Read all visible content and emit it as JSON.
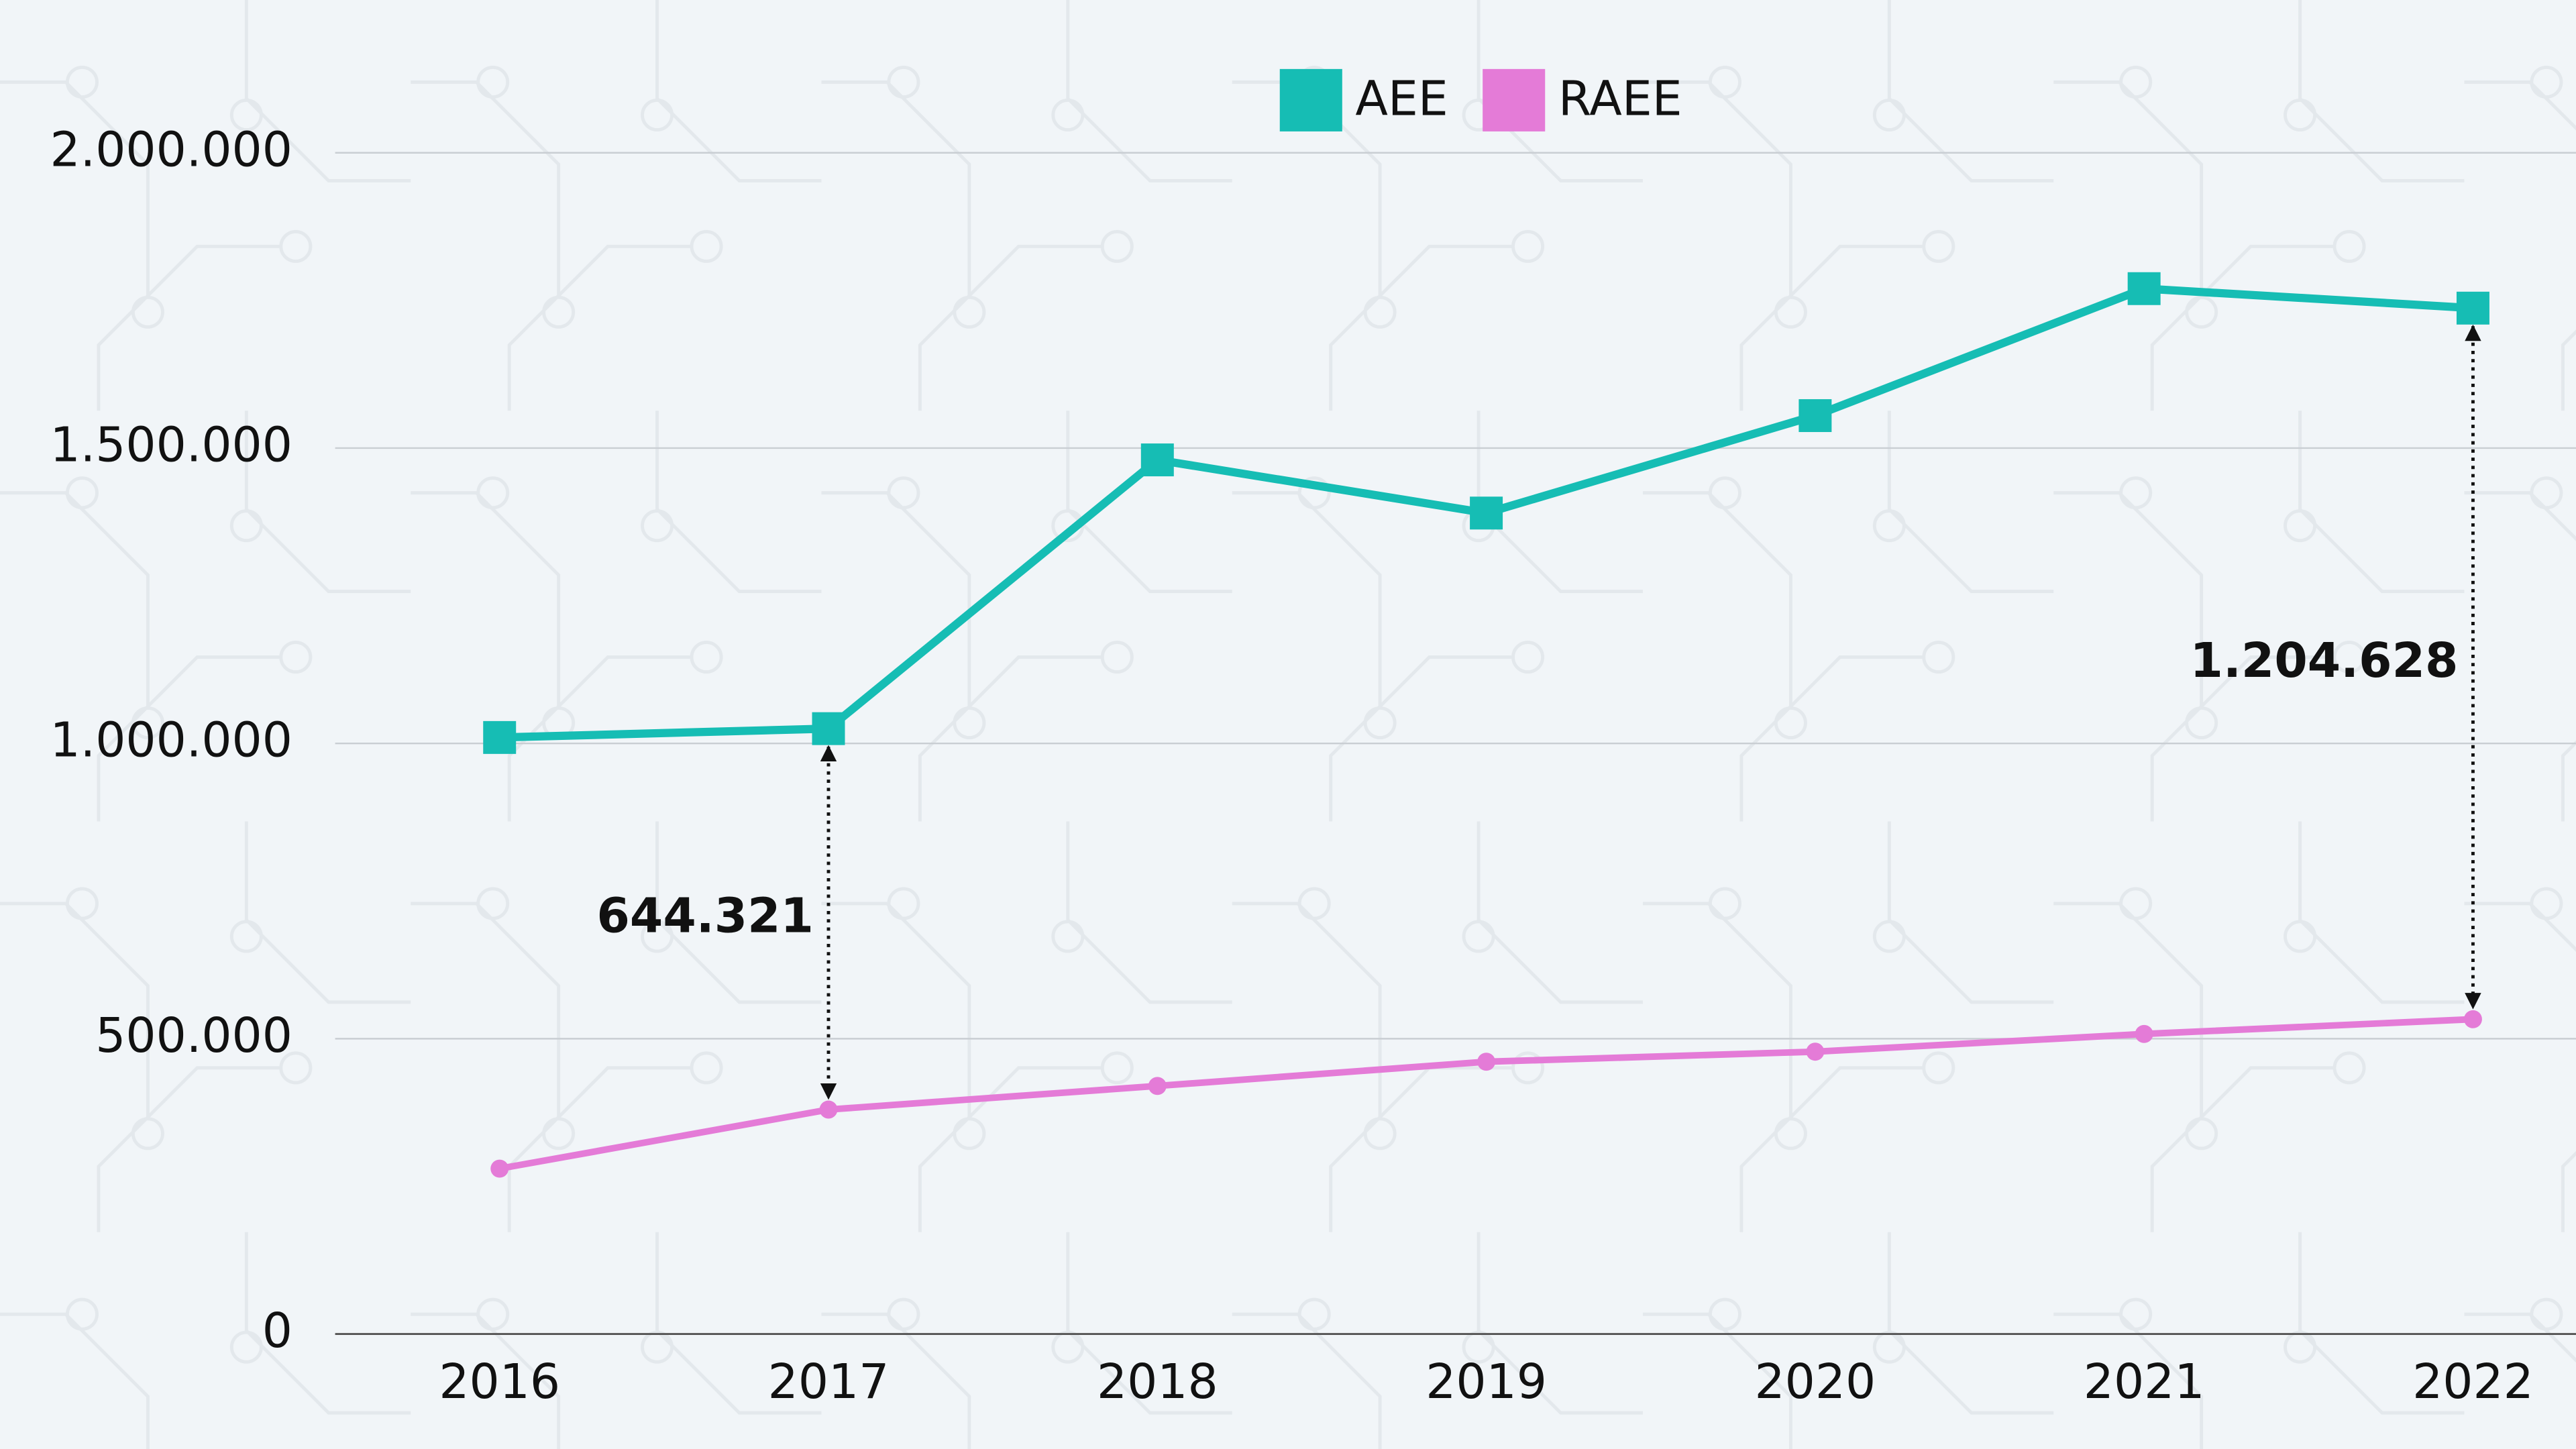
{
  "chart_data": {
    "type": "line",
    "categories": [
      "2016",
      "2017",
      "2018",
      "2019",
      "2020",
      "2021",
      "2022"
    ],
    "series": [
      {
        "name": "AEE",
        "color": "#16bdb4",
        "marker": "square",
        "values": [
          1010000,
          1025000,
          1480000,
          1390000,
          1555000,
          1770000,
          1737000
        ]
      },
      {
        "name": "RAEE",
        "color": "#e47bd7",
        "marker": "circle",
        "values": [
          280000,
          380000,
          420000,
          461000,
          478000,
          508000,
          533000
        ]
      }
    ],
    "ylim": [
      0,
      2000000
    ],
    "yticks": [
      0,
      {
        "value": 500000,
        "label": "500.000"
      },
      {
        "value": 1000000,
        "label": "1.000.000"
      },
      {
        "value": 1500000,
        "label": "1.500.000"
      },
      {
        "value": 2000000,
        "label": "2.000.000"
      }
    ],
    "grid": true,
    "legend": "top",
    "annotations": [
      {
        "category": "2017",
        "text": "644.321",
        "value": 644321
      },
      {
        "category": "2022",
        "text": "1.204.628",
        "value": 1204628
      }
    ]
  }
}
